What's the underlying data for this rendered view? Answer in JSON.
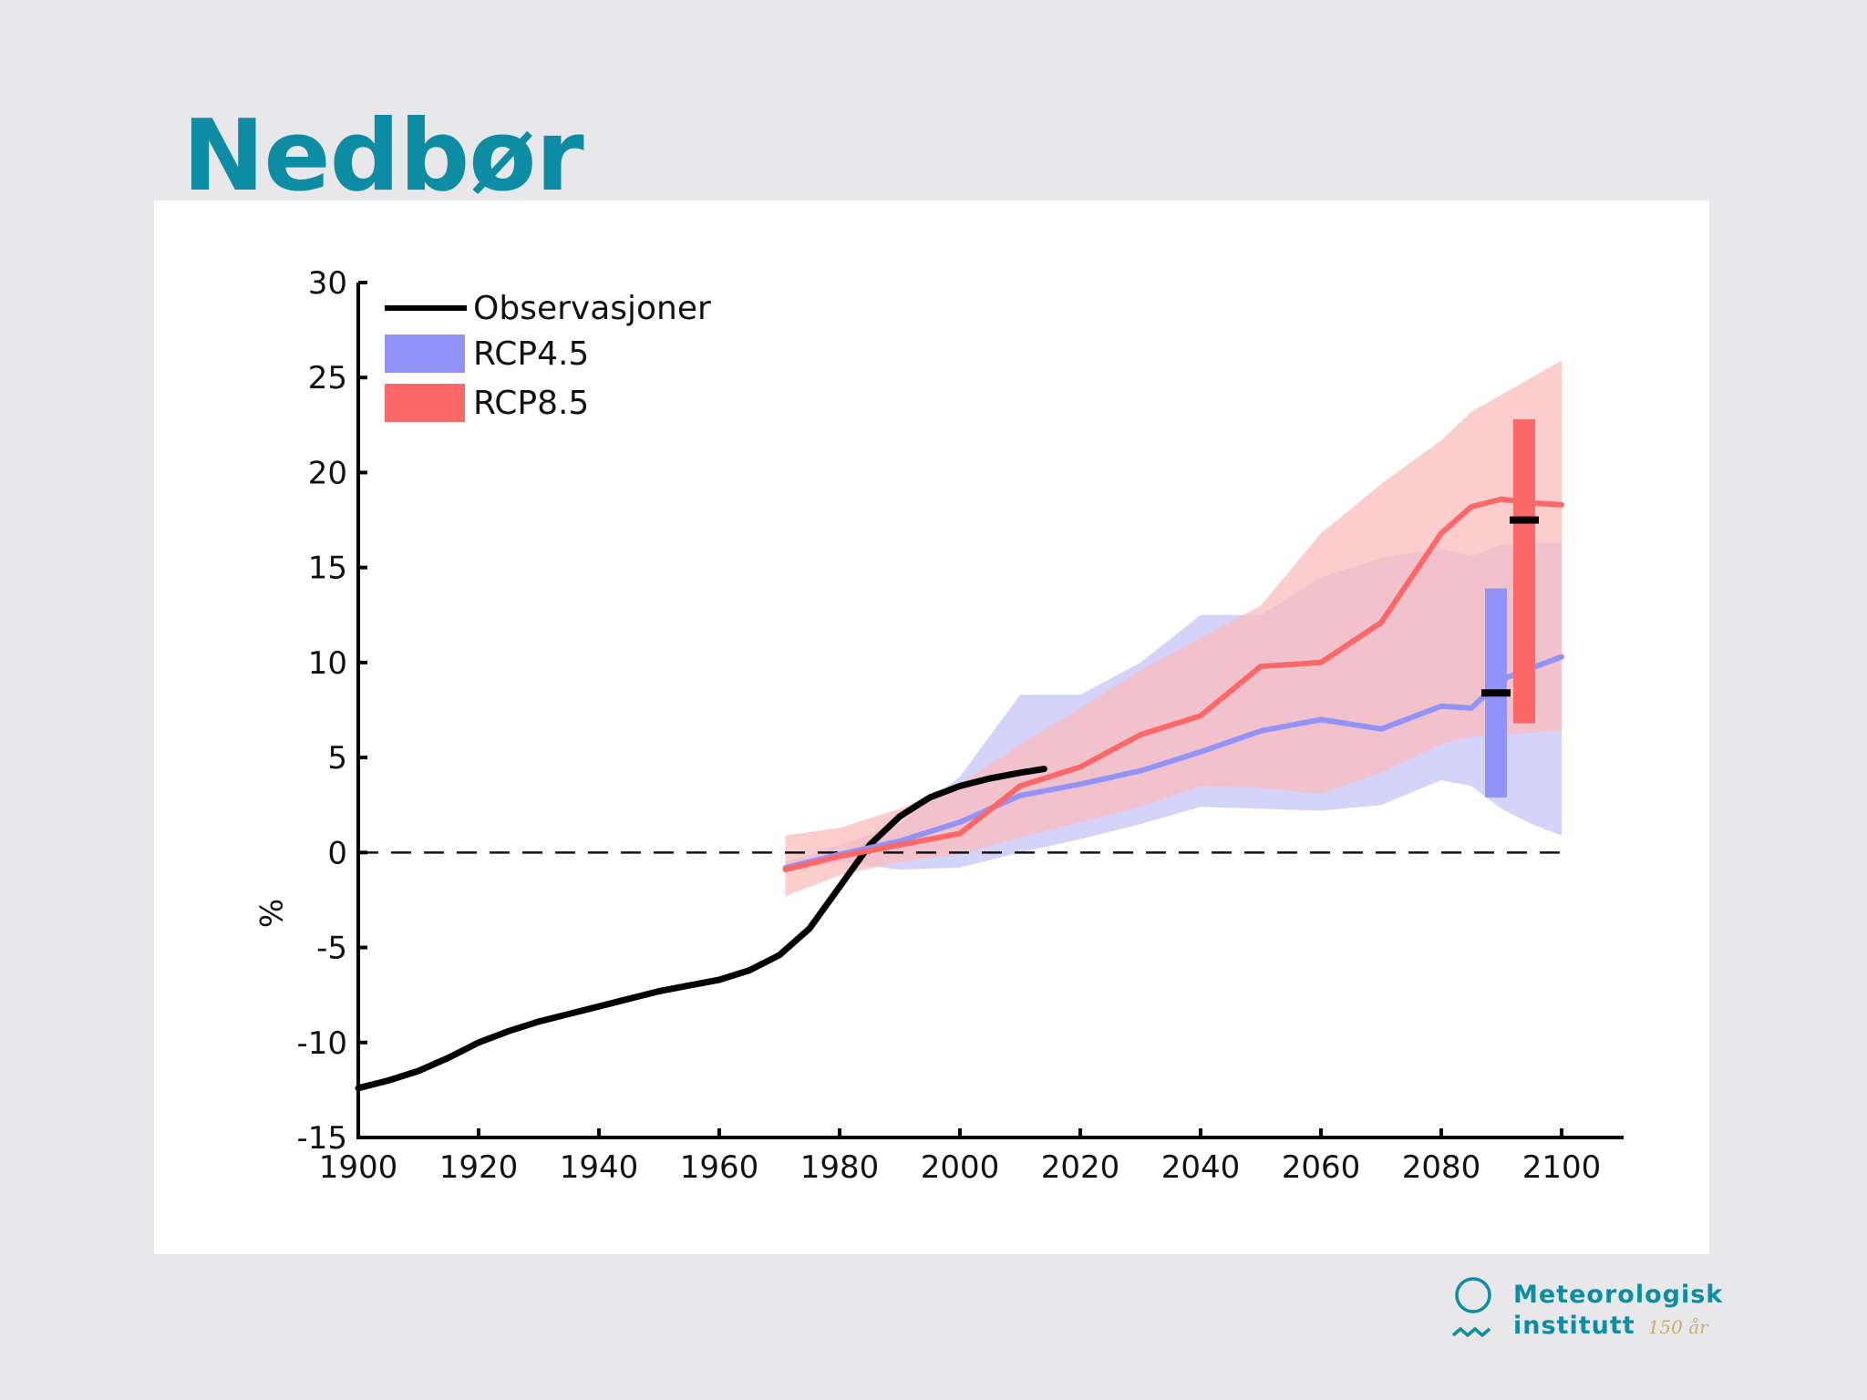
{
  "slide": {
    "title": "Nedbør"
  },
  "logo": {
    "line1": "Meteorologisk",
    "line2": "institutt",
    "anniversary": "150 år",
    "icon": "sun-over-waves-icon"
  },
  "colors": {
    "title": "#0e8ca3",
    "observations": "#000000",
    "rcp45_line": "#9393f7",
    "rcp45_band": "#d4d4fb",
    "rcp85_line": "#fc6767",
    "rcp85_band": "#fbbcbc",
    "overlap_band": "#e5a9b8"
  },
  "chart_data": {
    "type": "line",
    "title": "",
    "xlabel": "",
    "ylabel": "%",
    "xlim": [
      1900,
      2120
    ],
    "ylim": [
      -15,
      30
    ],
    "x_ticks": [
      1900,
      1920,
      1940,
      1960,
      1980,
      2000,
      2020,
      2040,
      2060,
      2080,
      2100
    ],
    "y_ticks": [
      30,
      25,
      20,
      15,
      10,
      5,
      0,
      -5,
      -10,
      -15
    ],
    "reference_line": {
      "y": 0,
      "style": "dashed"
    },
    "legend": {
      "placement": "top-left",
      "items": [
        "Observasjoner",
        "RCP4.5",
        "RCP8.5"
      ]
    },
    "series": [
      {
        "name": "Observasjoner",
        "kind": "line",
        "x": [
          1900,
          1905,
          1910,
          1915,
          1920,
          1925,
          1930,
          1935,
          1940,
          1945,
          1950,
          1955,
          1960,
          1965,
          1970,
          1975,
          1980,
          1985,
          1990,
          1995,
          2000,
          2005,
          2010,
          2014
        ],
        "y": [
          -12.4,
          -12.0,
          -11.5,
          -10.8,
          -10.0,
          -9.4,
          -8.9,
          -8.5,
          -8.1,
          -7.7,
          -7.3,
          -7.0,
          -6.7,
          -6.2,
          -5.4,
          -4.0,
          -1.8,
          0.4,
          1.9,
          2.9,
          3.5,
          3.9,
          4.2,
          4.4
        ]
      },
      {
        "name": "RCP4.5",
        "kind": "line-with-band",
        "x": [
          1971,
          1980,
          1990,
          2000,
          2010,
          2020,
          2030,
          2040,
          2050,
          2060,
          2070,
          2080,
          2085,
          2090,
          2095,
          2100
        ],
        "y": [
          -0.8,
          -0.1,
          0.6,
          1.6,
          3.0,
          3.6,
          4.3,
          5.3,
          6.4,
          7.0,
          6.5,
          7.7,
          7.6,
          9.1,
          9.7,
          10.3
        ],
        "lower": [
          -1.0,
          -0.5,
          -0.9,
          -0.8,
          0.0,
          0.7,
          1.5,
          2.4,
          2.3,
          2.2,
          2.5,
          3.8,
          3.5,
          2.3,
          1.5,
          0.9
        ],
        "upper": [
          -0.5,
          0.4,
          1.5,
          4.0,
          8.3,
          8.3,
          10.0,
          12.5,
          12.5,
          14.5,
          15.5,
          16.0,
          15.6,
          16.2,
          16.3,
          16.3
        ]
      },
      {
        "name": "RCP8.5",
        "kind": "line-with-band",
        "x": [
          1971,
          1980,
          1990,
          2000,
          2010,
          2020,
          2030,
          2040,
          2050,
          2060,
          2070,
          2080,
          2085,
          2090,
          2095,
          2100
        ],
        "y": [
          -0.9,
          -0.2,
          0.4,
          1.0,
          3.5,
          4.5,
          6.2,
          7.2,
          9.8,
          10.0,
          12.1,
          16.8,
          18.2,
          18.6,
          18.4,
          18.3
        ],
        "lower": [
          -2.3,
          -1.2,
          -0.5,
          -0.1,
          0.8,
          1.6,
          2.4,
          3.5,
          3.4,
          3.1,
          4.2,
          5.7,
          6.1,
          6.2,
          6.3,
          6.4
        ],
        "upper": [
          0.9,
          1.3,
          2.3,
          3.6,
          5.7,
          7.6,
          9.6,
          11.3,
          13.0,
          16.8,
          19.4,
          21.7,
          23.2,
          24.1,
          25.0,
          25.9
        ]
      }
    ],
    "range_bars": [
      {
        "name": "RCP4.5",
        "low": 2.9,
        "high": 13.9,
        "median": 8.4
      },
      {
        "name": "RCP8.5",
        "low": 6.8,
        "high": 22.8,
        "median": 17.5
      }
    ]
  }
}
